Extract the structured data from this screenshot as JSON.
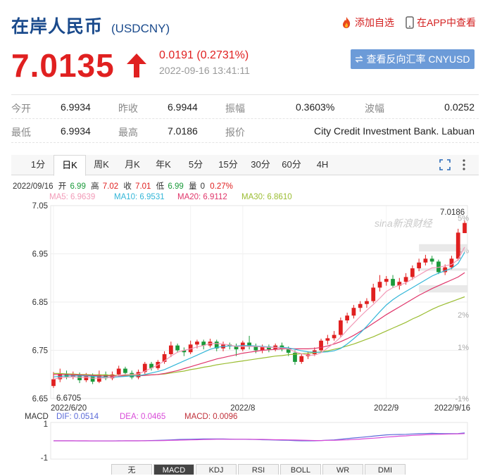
{
  "header": {
    "title": "在岸人民币",
    "code": "(USDCNY)",
    "add_watch": "添加自选",
    "in_app": "在APP中查看"
  },
  "quote": {
    "price": "7.0135",
    "change": "0.0191 (0.2731%)",
    "time": "2022-09-16 13:41:11",
    "reverse_button": "查看反向汇率 CNYUSD"
  },
  "stats": {
    "rows": [
      [
        {
          "label": "今开",
          "value": "6.9934"
        },
        {
          "label": "昨收",
          "value": "6.9944"
        },
        {
          "label": "振幅",
          "value": "0.3603%"
        },
        {
          "label": "波幅",
          "value": "0.0252"
        }
      ],
      [
        {
          "label": "最低",
          "value": "6.9934"
        },
        {
          "label": "最高",
          "value": "7.0186"
        },
        {
          "label": "报价",
          "value": "City Credit Investment Bank. Labuan"
        }
      ]
    ]
  },
  "period_tabs": [
    "1分",
    "日K",
    "周K",
    "月K",
    "年K",
    "5分",
    "15分",
    "30分",
    "60分",
    "4H"
  ],
  "active_tab": "日K",
  "colors": {
    "up": "#e02020",
    "down": "#1a9a3a",
    "ma5": "#f29bb8",
    "ma10": "#33b6d8",
    "ma20": "#e0356a",
    "ma30": "#9bbd32",
    "accent": "#1a4a8c"
  },
  "chart_info": {
    "date": "2022/09/16",
    "open_label": "开",
    "open": "6.99",
    "high_label": "高",
    "high": "7.02",
    "close_label": "收",
    "close": "7.01",
    "low_label": "低",
    "low": "6.99",
    "vol_label": "量",
    "vol": "0",
    "pct": "0.27%",
    "ma5": "MA5: 6.9639",
    "ma10": "MA10: 6.9531",
    "ma20": "MA20: 6.9112",
    "ma30": "MA30: 6.8610",
    "max_label": "7.0186",
    "min_label": "6.6705",
    "watermark": "sina新浪财经"
  },
  "macd_info": {
    "title": "MACD",
    "dif": "DIF: 0.0514",
    "dea": "DEA: 0.0465",
    "macd": "MACD: 0.0096"
  },
  "bottom_tabs": [
    "无",
    "MACD",
    "KDJ",
    "RSI",
    "BOLL",
    "WR",
    "DMI"
  ],
  "bottom_active": "MACD",
  "chart_data": {
    "type": "candlestick",
    "ylim": [
      6.65,
      7.05
    ],
    "y_ticks": [
      "7.05",
      "6.95",
      "6.85",
      "6.75",
      "6.65"
    ],
    "y_ticks_values": [
      7.05,
      6.95,
      6.85,
      6.75,
      6.65
    ],
    "pct_ticks": [
      "5%",
      "4%",
      "2%",
      "1%",
      "-1%"
    ],
    "pct_ticks_values": [
      5,
      4,
      2,
      1,
      -1
    ],
    "x_labels": [
      {
        "label": "2022/6/20",
        "i": 0
      },
      {
        "label": "2022/8",
        "i": 29
      },
      {
        "label": "2022/9",
        "i": 51
      },
      {
        "label": "2022/9/16",
        "i": 63
      }
    ],
    "candles": [
      [
        6.676,
        6.69,
        6.705,
        6.672
      ],
      [
        6.69,
        6.702,
        6.712,
        6.684
      ],
      [
        6.702,
        6.695,
        6.708,
        6.69
      ],
      [
        6.695,
        6.7,
        6.706,
        6.69
      ],
      [
        6.7,
        6.688,
        6.704,
        6.682
      ],
      [
        6.688,
        6.698,
        6.703,
        6.684
      ],
      [
        6.698,
        6.685,
        6.702,
        6.68
      ],
      [
        6.685,
        6.7,
        6.708,
        6.682
      ],
      [
        6.7,
        6.692,
        6.706,
        6.688
      ],
      [
        6.692,
        6.7,
        6.706,
        6.688
      ],
      [
        6.7,
        6.712,
        6.718,
        6.696
      ],
      [
        6.712,
        6.703,
        6.716,
        6.698
      ],
      [
        6.703,
        6.694,
        6.708,
        6.69
      ],
      [
        6.694,
        6.705,
        6.71,
        6.69
      ],
      [
        6.705,
        6.722,
        6.726,
        6.701
      ],
      [
        6.722,
        6.713,
        6.726,
        6.708
      ],
      [
        6.713,
        6.726,
        6.73,
        6.709
      ],
      [
        6.726,
        6.742,
        6.748,
        6.722
      ],
      [
        6.742,
        6.76,
        6.768,
        6.736
      ],
      [
        6.76,
        6.75,
        6.764,
        6.745
      ],
      [
        6.75,
        6.746,
        6.756,
        6.738
      ],
      [
        6.746,
        6.762,
        6.77,
        6.742
      ],
      [
        6.762,
        6.768,
        6.772,
        6.754
      ],
      [
        6.768,
        6.76,
        6.772,
        6.752
      ],
      [
        6.76,
        6.768,
        6.774,
        6.756
      ],
      [
        6.768,
        6.754,
        6.772,
        6.748
      ],
      [
        6.754,
        6.762,
        6.768,
        6.748
      ],
      [
        6.762,
        6.758,
        6.766,
        6.752
      ],
      [
        6.758,
        6.752,
        6.764,
        6.738
      ],
      [
        6.752,
        6.766,
        6.77,
        6.748
      ],
      [
        6.766,
        6.758,
        6.78,
        6.752
      ],
      [
        6.758,
        6.75,
        6.764,
        6.744
      ],
      [
        6.75,
        6.758,
        6.762,
        6.744
      ],
      [
        6.758,
        6.752,
        6.762,
        6.746
      ],
      [
        6.752,
        6.76,
        6.764,
        6.748
      ],
      [
        6.76,
        6.752,
        6.766,
        6.748
      ],
      [
        6.752,
        6.745,
        6.758,
        6.738
      ],
      [
        6.745,
        6.726,
        6.75,
        6.72
      ],
      [
        6.726,
        6.738,
        6.744,
        6.722
      ],
      [
        6.738,
        6.742,
        6.748,
        6.732
      ],
      [
        6.742,
        6.75,
        6.756,
        6.738
      ],
      [
        6.75,
        6.77,
        6.774,
        6.746
      ],
      [
        6.77,
        6.775,
        6.782,
        6.762
      ],
      [
        6.775,
        6.782,
        6.79,
        6.77
      ],
      [
        6.782,
        6.812,
        6.818,
        6.778
      ],
      [
        6.812,
        6.822,
        6.828,
        6.806
      ],
      [
        6.822,
        6.838,
        6.844,
        6.816
      ],
      [
        6.838,
        6.846,
        6.852,
        6.83
      ],
      [
        6.846,
        6.852,
        6.858,
        6.838
      ],
      [
        6.852,
        6.88,
        6.888,
        6.848
      ],
      [
        6.88,
        6.892,
        6.906,
        6.872
      ],
      [
        6.892,
        6.898,
        6.904,
        6.884
      ],
      [
        6.898,
        6.884,
        6.906,
        6.88
      ],
      [
        6.884,
        6.892,
        6.9,
        6.876
      ],
      [
        6.892,
        6.902,
        6.91,
        6.886
      ],
      [
        6.902,
        6.92,
        6.926,
        6.896
      ],
      [
        6.92,
        6.932,
        6.94,
        6.914
      ],
      [
        6.932,
        6.94,
        6.948,
        6.926
      ],
      [
        6.94,
        6.934,
        6.946,
        6.928
      ],
      [
        6.934,
        6.912,
        6.938,
        6.908
      ],
      [
        6.912,
        6.922,
        6.928,
        6.906
      ],
      [
        6.922,
        6.94,
        6.946,
        6.918
      ],
      [
        6.94,
        6.994,
        7.002,
        6.936
      ],
      [
        6.993,
        7.014,
        7.019,
        6.993
      ]
    ],
    "ma5": [
      6.69,
      6.693,
      6.694,
      6.695,
      6.694,
      6.694,
      6.692,
      6.692,
      6.693,
      6.694,
      6.698,
      6.7,
      6.7,
      6.701,
      6.707,
      6.713,
      6.72,
      6.728,
      6.738,
      6.746,
      6.75,
      6.753,
      6.757,
      6.76,
      6.764,
      6.764,
      6.763,
      6.761,
      6.758,
      6.758,
      6.758,
      6.758,
      6.757,
      6.756,
      6.756,
      6.755,
      6.753,
      6.747,
      6.743,
      6.74,
      6.74,
      6.745,
      6.755,
      6.765,
      6.777,
      6.792,
      6.806,
      6.82,
      6.833,
      6.845,
      6.858,
      6.872,
      6.88,
      6.885,
      6.89,
      6.898,
      6.906,
      6.914,
      6.921,
      6.922,
      6.925,
      6.928,
      6.938,
      6.964
    ],
    "ma10": [
      6.695,
      6.696,
      6.697,
      6.697,
      6.697,
      6.697,
      6.696,
      6.695,
      6.694,
      6.694,
      6.695,
      6.696,
      6.697,
      6.697,
      6.7,
      6.703,
      6.706,
      6.71,
      6.716,
      6.722,
      6.728,
      6.734,
      6.74,
      6.746,
      6.752,
      6.756,
      6.758,
      6.759,
      6.759,
      6.76,
      6.76,
      6.759,
      6.758,
      6.757,
      6.756,
      6.756,
      6.755,
      6.752,
      6.749,
      6.747,
      6.746,
      6.746,
      6.747,
      6.749,
      6.754,
      6.763,
      6.774,
      6.786,
      6.8,
      6.815,
      6.83,
      6.844,
      6.855,
      6.864,
      6.872,
      6.88,
      6.888,
      6.896,
      6.904,
      6.91,
      6.915,
      6.92,
      6.93,
      6.953
    ],
    "ma20": [
      6.7,
      6.7,
      6.7,
      6.699,
      6.699,
      6.698,
      6.698,
      6.697,
      6.697,
      6.697,
      6.697,
      6.697,
      6.697,
      6.697,
      6.698,
      6.699,
      6.7,
      6.702,
      6.705,
      6.708,
      6.712,
      6.716,
      6.72,
      6.724,
      6.728,
      6.732,
      6.735,
      6.738,
      6.741,
      6.744,
      6.746,
      6.748,
      6.75,
      6.751,
      6.752,
      6.753,
      6.753,
      6.753,
      6.753,
      6.753,
      6.754,
      6.756,
      6.759,
      6.763,
      6.768,
      6.774,
      6.781,
      6.789,
      6.797,
      6.806,
      6.815,
      6.824,
      6.832,
      6.84,
      6.848,
      6.856,
      6.864,
      6.871,
      6.878,
      6.884,
      6.89,
      6.896,
      6.902,
      6.911
    ],
    "ma30": [
      6.702,
      6.702,
      6.701,
      6.701,
      6.7,
      6.7,
      6.699,
      6.699,
      6.699,
      6.698,
      6.698,
      6.698,
      6.698,
      6.698,
      6.699,
      6.699,
      6.7,
      6.701,
      6.703,
      6.705,
      6.707,
      6.71,
      6.712,
      6.715,
      6.717,
      6.72,
      6.722,
      6.724,
      6.726,
      6.728,
      6.73,
      6.732,
      6.734,
      6.736,
      6.738,
      6.739,
      6.741,
      6.742,
      6.743,
      6.744,
      6.745,
      6.747,
      6.749,
      6.752,
      6.755,
      6.759,
      6.763,
      6.768,
      6.773,
      6.778,
      6.784,
      6.79,
      6.796,
      6.802,
      6.808,
      6.815,
      6.821,
      6.828,
      6.835,
      6.841,
      6.846,
      6.851,
      6.856,
      6.861
    ],
    "macd_dif": [
      0.0,
      0.0,
      0.0,
      0.0,
      -0.001,
      -0.001,
      -0.001,
      -0.001,
      -0.001,
      -0.001,
      0.0,
      0.0,
      0.0,
      0.0,
      0.001,
      0.002,
      0.003,
      0.004,
      0.006,
      0.008,
      0.009,
      0.01,
      0.011,
      0.012,
      0.012,
      0.012,
      0.012,
      0.011,
      0.01,
      0.01,
      0.009,
      0.008,
      0.007,
      0.006,
      0.005,
      0.004,
      0.003,
      0.001,
      0.0,
      0.0,
      0.0,
      0.002,
      0.004,
      0.006,
      0.01,
      0.014,
      0.018,
      0.022,
      0.026,
      0.03,
      0.034,
      0.038,
      0.04,
      0.041,
      0.042,
      0.044,
      0.046,
      0.047,
      0.048,
      0.047,
      0.046,
      0.046,
      0.047,
      0.051
    ],
    "macd_dea": [
      0.0,
      0.0,
      0.0,
      0.0,
      0.0,
      0.0,
      -0.001,
      -0.001,
      -0.001,
      -0.001,
      -0.001,
      0.0,
      0.0,
      0.0,
      0.0,
      0.001,
      0.001,
      0.002,
      0.003,
      0.004,
      0.005,
      0.006,
      0.007,
      0.008,
      0.009,
      0.01,
      0.01,
      0.01,
      0.01,
      0.01,
      0.01,
      0.009,
      0.009,
      0.008,
      0.007,
      0.007,
      0.006,
      0.005,
      0.004,
      0.003,
      0.002,
      0.002,
      0.003,
      0.003,
      0.005,
      0.006,
      0.008,
      0.011,
      0.014,
      0.017,
      0.02,
      0.024,
      0.027,
      0.03,
      0.032,
      0.035,
      0.037,
      0.039,
      0.041,
      0.042,
      0.043,
      0.044,
      0.045,
      0.0465
    ],
    "macd_hist": [
      0.0,
      0.0,
      0.0,
      0.0,
      -0.002,
      -0.002,
      0.0,
      0.0,
      0.0,
      0.0,
      0.002,
      0.0,
      0.0,
      0.0,
      0.002,
      0.002,
      0.004,
      0.004,
      0.006,
      0.008,
      0.008,
      0.008,
      0.008,
      0.008,
      0.006,
      0.004,
      0.004,
      0.002,
      0.0,
      0.0,
      -0.002,
      -0.002,
      -0.004,
      -0.004,
      -0.004,
      -0.006,
      -0.006,
      -0.008,
      -0.008,
      -0.006,
      -0.004,
      0.0,
      0.002,
      0.006,
      0.01,
      0.016,
      0.02,
      0.022,
      0.024,
      0.026,
      0.028,
      0.028,
      0.026,
      0.022,
      0.02,
      0.018,
      0.018,
      0.016,
      0.014,
      0.01,
      0.006,
      0.004,
      0.004,
      0.0096
    ],
    "macd_ylim": [
      -1,
      1
    ],
    "macd_ticks": [
      "1",
      "-1"
    ],
    "macd_ticks_values": [
      1,
      -1
    ]
  }
}
